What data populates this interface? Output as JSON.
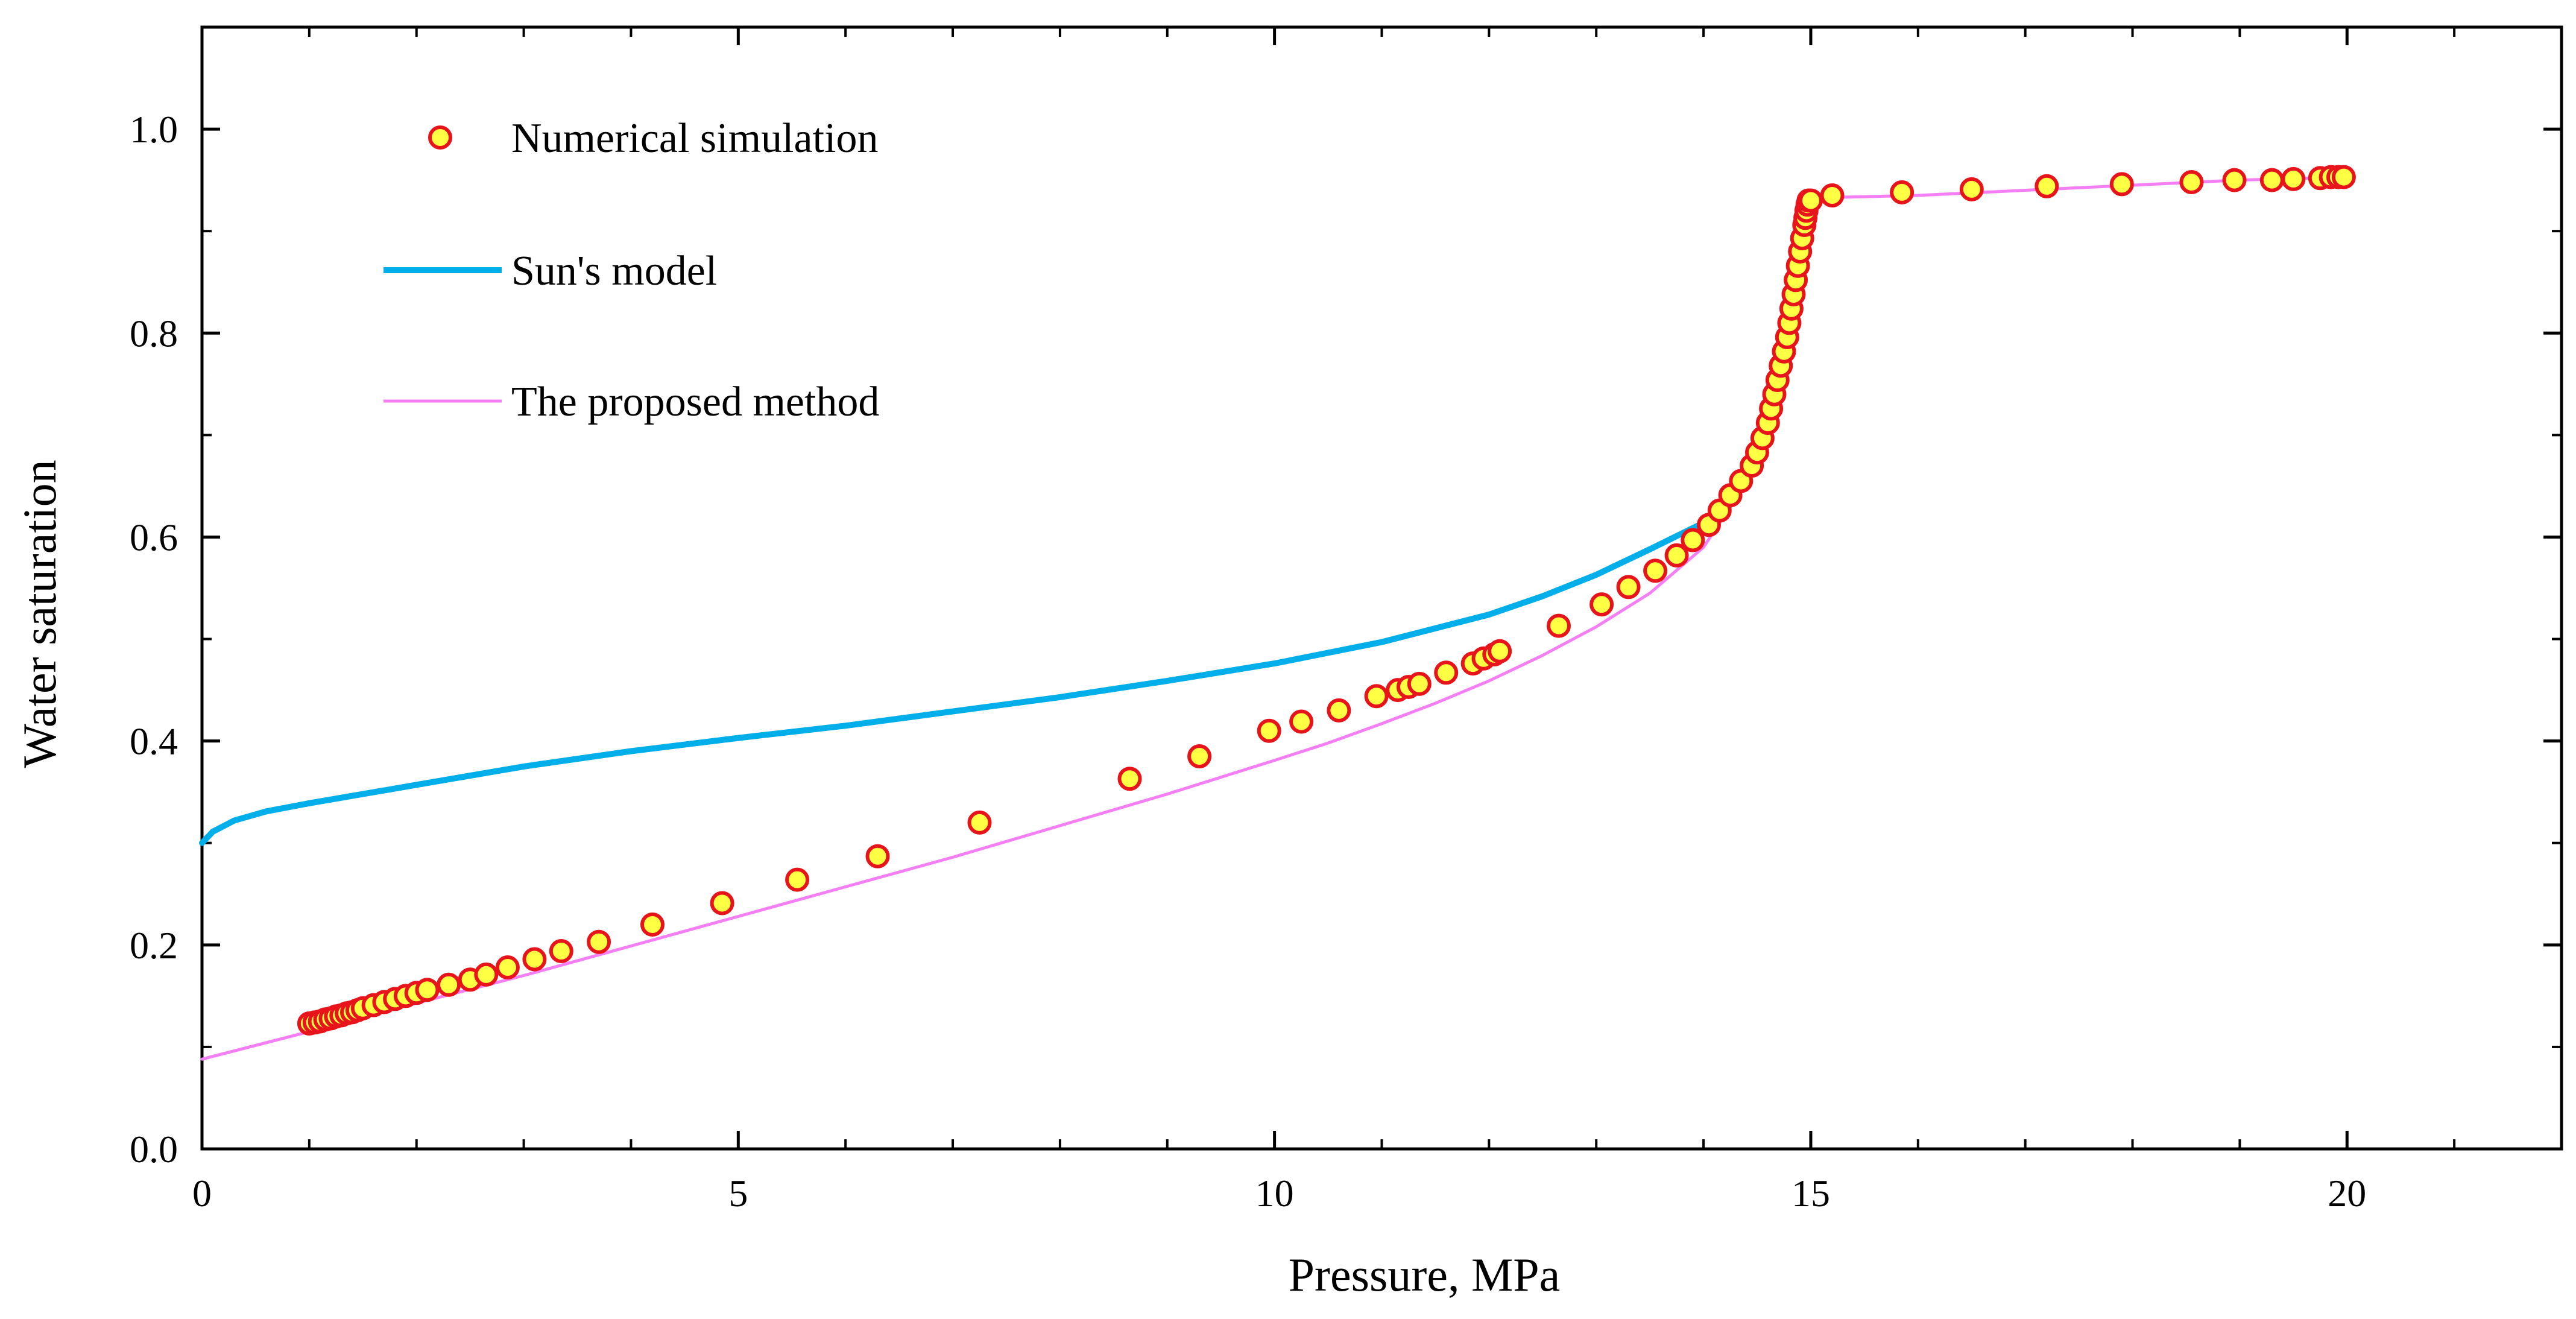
{
  "chart_data": {
    "type": "line",
    "title": "",
    "xlabel": "Pressure, MPa",
    "ylabel": "Water saturation",
    "xlim": [
      0,
      22
    ],
    "ylim": [
      0,
      1.1
    ],
    "x_ticks": [
      0,
      5,
      10,
      15,
      20
    ],
    "x_tick_labels": [
      "0",
      "5",
      "10",
      "15",
      "20"
    ],
    "x_minor_step": 1,
    "y_ticks": [
      0,
      0.2,
      0.4,
      0.6,
      0.8,
      1.0
    ],
    "y_tick_labels": [
      "0.0",
      "0.2",
      "0.4",
      "0.6",
      "0.8",
      "1.0"
    ],
    "y_minor_step": 0.1,
    "grid": false,
    "legend_position": "top-left",
    "colors": {
      "marker_fill": "#ffff44",
      "marker_edge": "#e8141c",
      "suns_model": "#00aeea",
      "proposed_method": "#f47ef4",
      "axis": "#000000"
    },
    "series": [
      {
        "name": "Numerical simulation",
        "kind": "scatter",
        "x": [
          1.0,
          1.05,
          1.1,
          1.15,
          1.2,
          1.25,
          1.3,
          1.35,
          1.4,
          1.45,
          1.5,
          1.6,
          1.7,
          1.8,
          1.9,
          2.0,
          2.1,
          2.3,
          2.5,
          2.65,
          2.85,
          3.1,
          3.35,
          3.7,
          4.2,
          4.85,
          5.55,
          6.3,
          7.25,
          8.65,
          9.3,
          9.95,
          10.25,
          10.6,
          10.95,
          11.15,
          11.25,
          11.35,
          11.6,
          11.85,
          11.95,
          12.05,
          12.1,
          12.65,
          13.05,
          13.3,
          13.55,
          13.75,
          13.9,
          14.05,
          14.15,
          14.25,
          14.35,
          14.45,
          14.5,
          14.55,
          14.6,
          14.63,
          14.66,
          14.69,
          14.72,
          14.75,
          14.78,
          14.8,
          14.82,
          14.84,
          14.86,
          14.88,
          14.9,
          14.92,
          14.94,
          14.95,
          14.96,
          14.97,
          14.98,
          15.0,
          15.2,
          15.85,
          16.5,
          17.2,
          17.9,
          18.55,
          18.95,
          19.3,
          19.5,
          19.75,
          19.85,
          19.92,
          19.97
        ],
        "y": [
          0.123,
          0.124,
          0.125,
          0.127,
          0.128,
          0.13,
          0.131,
          0.133,
          0.134,
          0.136,
          0.138,
          0.141,
          0.144,
          0.147,
          0.15,
          0.153,
          0.156,
          0.161,
          0.166,
          0.171,
          0.178,
          0.186,
          0.194,
          0.203,
          0.22,
          0.241,
          0.264,
          0.287,
          0.32,
          0.363,
          0.385,
          0.41,
          0.419,
          0.43,
          0.444,
          0.45,
          0.453,
          0.456,
          0.467,
          0.476,
          0.481,
          0.485,
          0.488,
          0.513,
          0.534,
          0.551,
          0.567,
          0.582,
          0.597,
          0.612,
          0.626,
          0.641,
          0.655,
          0.67,
          0.683,
          0.697,
          0.712,
          0.726,
          0.74,
          0.754,
          0.768,
          0.782,
          0.796,
          0.81,
          0.824,
          0.838,
          0.852,
          0.866,
          0.88,
          0.893,
          0.906,
          0.913,
          0.92,
          0.926,
          0.93,
          0.93,
          0.935,
          0.938,
          0.941,
          0.944,
          0.946,
          0.948,
          0.95,
          0.95,
          0.951,
          0.952,
          0.953,
          0.953,
          0.953
        ]
      },
      {
        "name": "Sun's model",
        "kind": "line",
        "x": [
          0,
          0.1,
          0.3,
          0.6,
          1.0,
          1.5,
          2.0,
          2.5,
          3.0,
          4.0,
          5.0,
          6.0,
          7.0,
          8.0,
          9.0,
          10.0,
          11.0,
          12.0,
          12.5,
          13.0,
          13.5,
          14.0,
          14.3
        ],
        "y": [
          0.3,
          0.311,
          0.322,
          0.331,
          0.339,
          0.348,
          0.357,
          0.366,
          0.375,
          0.39,
          0.403,
          0.415,
          0.429,
          0.443,
          0.459,
          0.476,
          0.497,
          0.524,
          0.542,
          0.563,
          0.588,
          0.614,
          0.635
        ]
      },
      {
        "name": "The proposed method",
        "kind": "line",
        "x": [
          0,
          1,
          2,
          3,
          4,
          5,
          6,
          7,
          8,
          9,
          10,
          10.5,
          11,
          11.5,
          12,
          12.5,
          13,
          13.5,
          14,
          14.2,
          14.4,
          14.5,
          14.6,
          14.7,
          14.8,
          14.85,
          14.9,
          14.95,
          15.0,
          15.2,
          16,
          17,
          18,
          19,
          20
        ],
        "y": [
          0.088,
          0.115,
          0.143,
          0.17,
          0.199,
          0.228,
          0.257,
          0.286,
          0.317,
          0.348,
          0.381,
          0.398,
          0.417,
          0.437,
          0.459,
          0.484,
          0.512,
          0.545,
          0.59,
          0.622,
          0.662,
          0.69,
          0.73,
          0.77,
          0.83,
          0.87,
          0.9,
          0.922,
          0.933,
          0.933,
          0.935,
          0.94,
          0.945,
          0.95,
          0.953
        ]
      }
    ]
  }
}
